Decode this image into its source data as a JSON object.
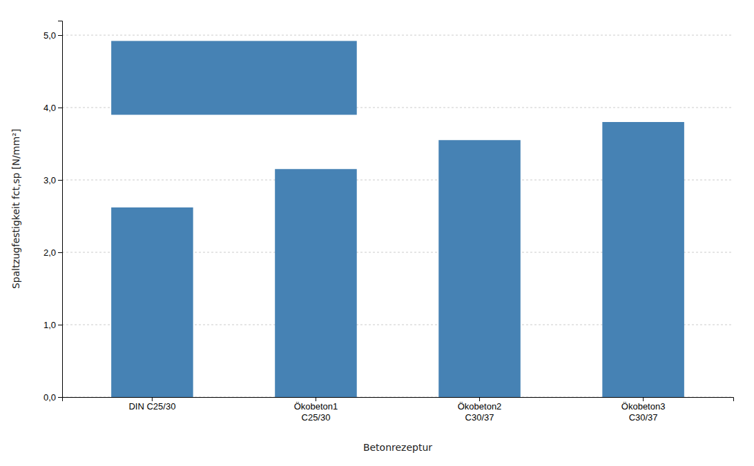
{
  "chart_data": {
    "type": "bar",
    "categories": [
      "DIN C25/30",
      "Ökobeton1\nC25/30",
      "Ökobeton2\nC30/37",
      "Ökobeton3\nC30/37"
    ],
    "values": [
      2.62,
      3.15,
      3.55,
      3.8
    ],
    "xlabel": "Betonrezeptur",
    "ylabel": "Spaltzugfestigkeit fct,sp [N/mm²]",
    "ylim": [
      0,
      5.2
    ],
    "yticks": [
      {
        "value": 0.0,
        "label": "0,0"
      },
      {
        "value": 1.0,
        "label": "1,0"
      },
      {
        "value": 2.0,
        "label": "2,0"
      },
      {
        "value": 3.0,
        "label": "3,0"
      },
      {
        "value": 4.0,
        "label": "4,0"
      },
      {
        "value": 5.0,
        "label": "5,0"
      }
    ],
    "ref_box_ymin": 3.9,
    "ref_box_ymax": 4.92,
    "grid": true
  }
}
